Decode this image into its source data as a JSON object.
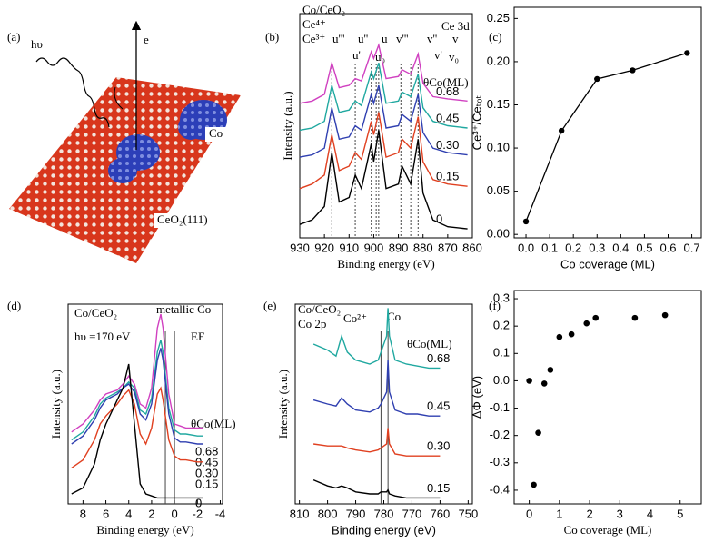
{
  "illustration": {
    "panel_label": "(a)",
    "photon": "hυ",
    "electron": "e",
    "cluster": "Co",
    "substrate": "CeO₂(111)"
  },
  "chart_data": [
    {
      "type": "line",
      "panel_label": "(b)",
      "xlabel": "Binding energy (eV)",
      "ylabel": "Intensity (a.u.)",
      "xlim": [
        930,
        860
      ],
      "xticks": [
        930,
        920,
        910,
        900,
        890,
        880,
        870,
        860
      ],
      "ylim": [
        0,
        100
      ],
      "reference_lines": [
        917,
        907.5,
        901,
        899,
        898,
        889,
        885,
        882
      ],
      "annotations": [
        {
          "text": "Co/CeO₂",
          "color": "#000000"
        },
        {
          "text": "Ce⁴⁺",
          "color": "#c8201a"
        },
        {
          "text": "Ce³⁺",
          "color": "#2f3fb0"
        },
        {
          "text": "Ce 3d",
          "color": "#000000"
        },
        {
          "text": "u'''",
          "color": "#c8201a"
        },
        {
          "text": "u''",
          "color": "#c8201a"
        },
        {
          "text": "u",
          "color": "#c8201a"
        },
        {
          "text": "v'''",
          "color": "#c8201a"
        },
        {
          "text": "v''",
          "color": "#c8201a"
        },
        {
          "text": "v",
          "color": "#c8201a"
        },
        {
          "text": "u'",
          "color": "#2f3fb0"
        },
        {
          "text": "u₀",
          "color": "#2f3fb0"
        },
        {
          "text": "v'",
          "color": "#2f3fb0"
        },
        {
          "text": "v₀",
          "color": "#2f3fb0"
        },
        {
          "text": "θCo(ML)",
          "color": "#000000"
        }
      ],
      "x": [
        930,
        925,
        920,
        917,
        914,
        910,
        907.5,
        905,
        901,
        900,
        898,
        895,
        890,
        888.5,
        885,
        882,
        880,
        876,
        870,
        862
      ],
      "series": [
        {
          "name": "0.68",
          "color": "#d040c0",
          "values": [
            60,
            61,
            64,
            78,
            67,
            68,
            71,
            70,
            83,
            80,
            86,
            71,
            72,
            75,
            73,
            82,
            69,
            63,
            62,
            61
          ]
        },
        {
          "name": "0.45",
          "color": "#20a8a0",
          "values": [
            48,
            49,
            52,
            68,
            56,
            57,
            61,
            59,
            74,
            71,
            78,
            60,
            61,
            65,
            63,
            73,
            58,
            52,
            50,
            49
          ]
        },
        {
          "name": "0.30",
          "color": "#2f3fb0",
          "values": [
            36,
            37,
            40,
            58,
            44,
            45,
            50,
            48,
            64,
            60,
            68,
            49,
            50,
            55,
            52,
            64,
            47,
            40,
            38,
            37
          ]
        },
        {
          "name": "0.15",
          "color": "#e04020",
          "values": [
            22,
            24,
            28,
            46,
            30,
            32,
            38,
            35,
            52,
            46,
            56,
            36,
            38,
            44,
            40,
            54,
            34,
            26,
            24,
            23
          ]
        },
        {
          "name": "0",
          "color": "#000000",
          "values": [
            6,
            8,
            14,
            38,
            16,
            18,
            28,
            22,
            42,
            34,
            48,
            22,
            24,
            32,
            24,
            44,
            20,
            8,
            5,
            4
          ]
        }
      ]
    },
    {
      "type": "line",
      "panel_label": "(c)",
      "xlabel": "Co coverage (ML)",
      "ylabel": "Ce³⁺/Ceₜₒₜ",
      "marker": true,
      "color": "#000000",
      "xlim": [
        -0.05,
        0.74
      ],
      "xticks": [
        {
          "value": 0,
          "label": "0.0"
        },
        0.1,
        0.2,
        0.3,
        0.4,
        0.5,
        0.6,
        0.7
      ],
      "ylim": [
        -0.004,
        0.263
      ],
      "yticks": [
        {
          "value": 0,
          "label": "0.00"
        },
        0.05,
        {
          "value": 0.1,
          "label": "0.10"
        },
        0.15,
        {
          "value": 0.2,
          "label": "0.20"
        },
        0.25
      ],
      "x": [
        0,
        0.15,
        0.3,
        0.45,
        0.68
      ],
      "values": [
        0.015,
        0.12,
        0.18,
        0.19,
        0.21
      ]
    },
    {
      "type": "line",
      "panel_label": "(d)",
      "xlabel": "Binding energy (eV)",
      "ylabel": "Intensity (a.u.)",
      "xlim": [
        9.3,
        -4.2
      ],
      "xticks": [
        8,
        6,
        4,
        2,
        0,
        -2,
        -4
      ],
      "ylim": [
        0,
        100
      ],
      "reference_lines": [
        0.8,
        0
      ],
      "annotations": [
        {
          "text": "Co/CeO₂",
          "color": "#000000"
        },
        {
          "text": "hυ =170 eV",
          "color": "#000000"
        },
        {
          "text": "metallic Co",
          "color": "#000000"
        },
        {
          "text": "EF",
          "color": "#000000"
        },
        {
          "text": "θCo(ML)",
          "color": "#000000"
        }
      ],
      "x": [
        9,
        8,
        7,
        6.5,
        6,
        5,
        4.5,
        4,
        3.5,
        3,
        2.5,
        2,
        1.5,
        1.2,
        1,
        0.5,
        0,
        -0.5,
        -1,
        -2,
        -2.5
      ],
      "series": [
        {
          "name": "0.68",
          "color": "#d040c0",
          "values": [
            36,
            40,
            47,
            52,
            55,
            57,
            60,
            64,
            60,
            50,
            48,
            58,
            88,
            95,
            88,
            55,
            40,
            39,
            38,
            38,
            38
          ]
        },
        {
          "name": "0.45",
          "color": "#20a8a0",
          "values": [
            32,
            36,
            44,
            50,
            53,
            56,
            58,
            61,
            58,
            47,
            45,
            53,
            76,
            82,
            76,
            48,
            37,
            35,
            35,
            34,
            34
          ]
        },
        {
          "name": "0.30",
          "color": "#2f3fb0",
          "values": [
            30,
            34,
            42,
            48,
            52,
            55,
            58,
            60,
            56,
            45,
            42,
            50,
            72,
            78,
            72,
            45,
            33,
            31,
            31,
            30,
            30
          ]
        },
        {
          "name": "0.15",
          "color": "#e04020",
          "values": [
            18,
            22,
            32,
            40,
            44,
            50,
            54,
            57,
            50,
            35,
            30,
            38,
            55,
            58,
            52,
            32,
            24,
            22,
            22,
            21,
            21
          ]
        },
        {
          "name": "0",
          "color": "#000000",
          "values": [
            5,
            8,
            20,
            32,
            40,
            52,
            58,
            70,
            40,
            10,
            5,
            4,
            3,
            3,
            3,
            3,
            3,
            3,
            3,
            3,
            3
          ]
        }
      ]
    },
    {
      "type": "line",
      "panel_label": "(e)",
      "xlabel": "Binding energy (eV)",
      "ylabel": "Intensity (a.u.)",
      "xlim": [
        811.5,
        748.5
      ],
      "xticks": [
        810,
        800,
        790,
        780,
        770,
        760,
        750
      ],
      "ylim": [
        0,
        100
      ],
      "reference_lines": [
        781,
        778.5
      ],
      "annotations": [
        {
          "text": "Co/CeO₂",
          "color": "#000000"
        },
        {
          "text": "Co 2p",
          "color": "#000000"
        },
        {
          "text": "Co²⁺",
          "color": "#000000"
        },
        {
          "text": "Co",
          "color": "#000000"
        },
        {
          "text": "θCo(ML)",
          "color": "#000000"
        }
      ],
      "x": [
        805,
        800,
        797,
        795,
        793,
        790,
        785,
        782,
        781,
        779,
        778.5,
        778,
        776,
        772,
        768,
        764,
        760
      ],
      "series": [
        {
          "name": "0.68",
          "color": "#20a8a0",
          "values": [
            80,
            77,
            74,
            84,
            76,
            72,
            70,
            72,
            76,
            84,
            98,
            84,
            72,
            70,
            69,
            68,
            68
          ]
        },
        {
          "name": "0.45",
          "color": "#2f3fb0",
          "values": [
            52,
            50,
            49,
            53,
            50,
            47,
            46,
            48,
            50,
            56,
            72,
            56,
            47,
            45,
            45,
            44,
            44
          ]
        },
        {
          "name": "0.30",
          "color": "#e04020",
          "values": [
            30,
            29,
            29,
            29,
            28,
            27,
            26,
            27,
            28,
            30,
            38,
            30,
            25,
            24,
            24,
            24,
            24
          ]
        },
        {
          "name": "0.15",
          "color": "#000000",
          "values": [
            12,
            9,
            8,
            9,
            8,
            6,
            5,
            5,
            6,
            6,
            7,
            5,
            4,
            3,
            3,
            3,
            3
          ]
        }
      ]
    },
    {
      "type": "scatter",
      "panel_label": "(f)",
      "xlabel": "Co coverage  (ML)",
      "ylabel": "ΔΦ (eV)",
      "color": "#000000",
      "xlim": [
        -0.5,
        5.7
      ],
      "xticks": [
        0,
        1,
        2,
        3,
        4,
        5
      ],
      "ylim": [
        -0.45,
        0.33
      ],
      "yticks": [
        {
          "value": -0.4,
          "label": "-0.4"
        },
        -0.3,
        -0.2,
        -0.1,
        {
          "value": 0,
          "label": "0.0"
        },
        0.1,
        0.2,
        0.3
      ],
      "x": [
        0,
        0.15,
        0.3,
        0.5,
        0.7,
        1,
        1.4,
        1.9,
        2.2,
        3.5,
        4.5
      ],
      "values": [
        0,
        -0.38,
        -0.19,
        -0.01,
        0.04,
        0.16,
        0.17,
        0.21,
        0.23,
        0.23,
        0.24
      ]
    }
  ]
}
